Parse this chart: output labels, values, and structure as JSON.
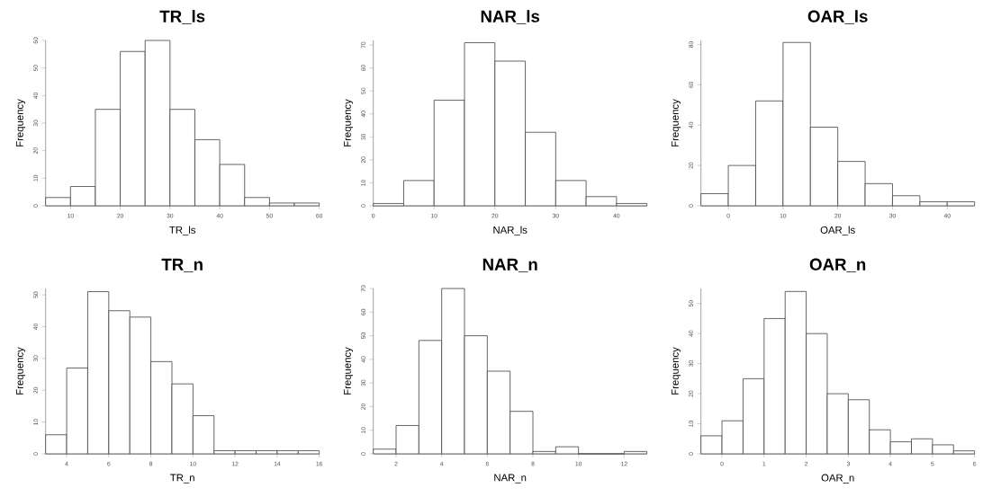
{
  "chart_data": [
    {
      "type": "histogram",
      "title": "TR_ls",
      "xlabel": "TR_ls",
      "ylabel": "Frequency",
      "bins": [
        5,
        10,
        15,
        20,
        25,
        30,
        35,
        40,
        45,
        50,
        55,
        60
      ],
      "values": [
        3,
        7,
        35,
        56,
        60,
        35,
        24,
        15,
        3,
        1,
        1
      ],
      "xlim": [
        5,
        60
      ],
      "ylim": [
        0,
        60
      ],
      "xticks": [
        10,
        20,
        30,
        40,
        50,
        60
      ],
      "yticks": [
        0,
        10,
        20,
        30,
        40,
        50,
        60
      ]
    },
    {
      "type": "histogram",
      "title": "NAR_ls",
      "xlabel": "NAR_ls",
      "ylabel": "Frequency",
      "bins": [
        0,
        5,
        10,
        15,
        20,
        25,
        30,
        35,
        40,
        45
      ],
      "values": [
        1,
        11,
        46,
        71,
        63,
        32,
        11,
        4,
        1
      ],
      "xlim": [
        0,
        45
      ],
      "ylim": [
        0,
        72
      ],
      "xticks": [
        0,
        10,
        20,
        30,
        40
      ],
      "yticks": [
        0,
        10,
        20,
        30,
        40,
        50,
        60,
        70
      ]
    },
    {
      "type": "histogram",
      "title": "OAR_ls",
      "xlabel": "OAR_ls",
      "ylabel": "Frequency",
      "bins": [
        -5,
        0,
        5,
        10,
        15,
        20,
        25,
        30,
        35,
        40,
        45
      ],
      "values": [
        6,
        20,
        52,
        81,
        39,
        22,
        11,
        5,
        2,
        2
      ],
      "xlim": [
        -5,
        45
      ],
      "ylim": [
        0,
        82
      ],
      "xticks": [
        0,
        10,
        20,
        30,
        40
      ],
      "yticks": [
        0,
        20,
        40,
        60,
        80
      ]
    },
    {
      "type": "histogram",
      "title": "TR_n",
      "xlabel": "TR_n",
      "ylabel": "Frequency",
      "bins": [
        3,
        4,
        5,
        6,
        7,
        8,
        9,
        10,
        11,
        12,
        13,
        14,
        15,
        16
      ],
      "values": [
        6,
        27,
        51,
        45,
        43,
        29,
        22,
        12,
        1,
        1,
        1,
        1,
        1
      ],
      "xlim": [
        3,
        16
      ],
      "ylim": [
        0,
        52
      ],
      "xticks": [
        4,
        6,
        8,
        10,
        12,
        14,
        16
      ],
      "yticks": [
        0,
        10,
        20,
        30,
        40,
        50
      ]
    },
    {
      "type": "histogram",
      "title": "NAR_n",
      "xlabel": "NAR_n",
      "ylabel": "Frequency",
      "bins": [
        1,
        2,
        3,
        4,
        5,
        6,
        7,
        8,
        9,
        10,
        11,
        12,
        13
      ],
      "values": [
        2,
        12,
        48,
        70,
        50,
        35,
        18,
        1,
        3,
        0,
        0,
        1
      ],
      "xlim": [
        1,
        13
      ],
      "ylim": [
        0,
        70
      ],
      "xticks": [
        2,
        4,
        6,
        8,
        10,
        12
      ],
      "yticks": [
        0,
        10,
        20,
        30,
        40,
        50,
        60,
        70
      ]
    },
    {
      "type": "histogram",
      "title": "OAR_n",
      "xlabel": "OAR_n",
      "ylabel": "Frequency",
      "bins": [
        -0.5,
        0,
        0.5,
        1,
        1.5,
        2,
        2.5,
        3,
        3.5,
        4,
        4.5,
        5,
        5.5,
        6
      ],
      "values": [
        6,
        11,
        25,
        45,
        54,
        40,
        20,
        18,
        8,
        4,
        5,
        3,
        1
      ],
      "xlim": [
        -0.5,
        6
      ],
      "ylim": [
        0,
        55
      ],
      "xticks": [
        0,
        1,
        2,
        3,
        4,
        5,
        6
      ],
      "yticks": [
        0,
        10,
        20,
        30,
        40,
        50
      ]
    }
  ]
}
